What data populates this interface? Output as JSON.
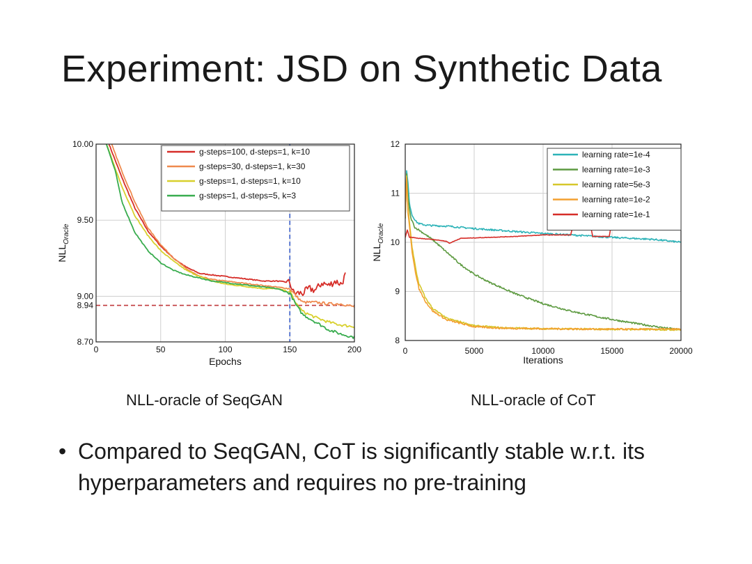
{
  "slide": {
    "title": "Experiment: JSD on Synthetic Data",
    "caption_left": "NLL-oracle of SeqGAN",
    "caption_right": "NLL-oracle of CoT",
    "bullet_symbol": "•",
    "bullet_text": "Compared to SeqGAN, CoT is significantly stable w.r.t. its hyperparameters and requires no pre-training"
  },
  "chart_data": [
    {
      "id": "seqgan",
      "type": "line",
      "xlabel": "Epochs",
      "ylabel": "NLL",
      "ylabel_sub": "Oracle",
      "xlim": [
        0,
        200
      ],
      "ylim": [
        8.7,
        10.0
      ],
      "xticks": [
        0,
        50,
        100,
        150,
        200
      ],
      "yticks": [
        {
          "value": 8.7,
          "label": "8.70"
        },
        {
          "value": 8.94,
          "label": "8.94"
        },
        {
          "value": 9.0,
          "label": "9.00"
        },
        {
          "value": 9.5,
          "label": "9.50"
        },
        {
          "value": 10.0,
          "label": "10.00"
        }
      ],
      "grid": true,
      "legend_position": "top-right",
      "reference_lines": [
        {
          "orient": "h",
          "value": 8.94,
          "color": "#c0393b",
          "style": "dashed"
        },
        {
          "orient": "v",
          "value": 150,
          "color": "#3a5ec8",
          "style": "dashed"
        }
      ],
      "series": [
        {
          "name": "g-steps=100, d-steps=1, k=10",
          "color": "#d62d28",
          "x": [
            10,
            20,
            30,
            40,
            50,
            60,
            70,
            80,
            90,
            100,
            110,
            120,
            130,
            140,
            150,
            153,
            160,
            165,
            170,
            175,
            180,
            185,
            190,
            193
          ],
          "y": [
            10.0,
            9.78,
            9.58,
            9.43,
            9.33,
            9.25,
            9.19,
            9.15,
            9.14,
            9.13,
            9.12,
            9.11,
            9.1,
            9.1,
            9.09,
            9.02,
            9.02,
            9.05,
            9.04,
            9.09,
            9.07,
            9.1,
            9.08,
            9.14
          ]
        },
        {
          "name": "g-steps=30,   d-steps=1, k=30",
          "color": "#ef8a4e",
          "x": [
            12,
            20,
            30,
            40,
            50,
            60,
            70,
            80,
            90,
            100,
            110,
            120,
            130,
            140,
            150,
            155,
            160,
            170,
            180,
            190,
            200
          ],
          "y": [
            10.0,
            9.82,
            9.62,
            9.45,
            9.34,
            9.25,
            9.18,
            9.13,
            9.11,
            9.1,
            9.09,
            9.08,
            9.07,
            9.06,
            9.05,
            9.0,
            8.96,
            8.96,
            8.95,
            8.95,
            8.93
          ]
        },
        {
          "name": "g-steps=1,     d-steps=1, k=10",
          "color": "#d8d02c",
          "x": [
            8,
            20,
            30,
            40,
            50,
            60,
            70,
            80,
            90,
            100,
            110,
            120,
            130,
            140,
            150,
            155,
            160,
            170,
            180,
            190,
            200
          ],
          "y": [
            10.0,
            9.72,
            9.53,
            9.4,
            9.3,
            9.23,
            9.17,
            9.13,
            9.1,
            9.08,
            9.07,
            9.06,
            9.05,
            9.05,
            9.03,
            8.95,
            8.9,
            8.86,
            8.83,
            8.81,
            8.8
          ]
        },
        {
          "name": "g-steps=1,     d-steps=5, k=3",
          "color": "#38ac4e",
          "x": [
            8,
            15,
            20,
            30,
            40,
            50,
            60,
            70,
            80,
            90,
            100,
            110,
            120,
            130,
            140,
            150,
            155,
            160,
            170,
            180,
            190,
            200
          ],
          "y": [
            10.0,
            9.82,
            9.62,
            9.42,
            9.3,
            9.22,
            9.17,
            9.14,
            9.12,
            9.1,
            9.09,
            9.08,
            9.07,
            9.06,
            9.05,
            9.02,
            8.94,
            8.88,
            8.83,
            8.78,
            8.75,
            8.73
          ]
        }
      ]
    },
    {
      "id": "cot",
      "type": "line",
      "xlabel": "Iterations",
      "ylabel": "NLL",
      "ylabel_sub": "Oracle",
      "xlim": [
        0,
        20000
      ],
      "ylim": [
        8,
        12
      ],
      "xticks": [
        0,
        5000,
        10000,
        15000,
        20000
      ],
      "yticks": [
        {
          "value": 8,
          "label": "8"
        },
        {
          "value": 9,
          "label": "9"
        },
        {
          "value": 10,
          "label": "10"
        },
        {
          "value": 11,
          "label": "11"
        },
        {
          "value": 12,
          "label": "12"
        }
      ],
      "grid": true,
      "legend_position": "top-right",
      "series": [
        {
          "name": "learning rate=1e-4",
          "color": "#2db3b8",
          "x": [
            0,
            100,
            200,
            300,
            500,
            800,
            1000,
            1500,
            2000,
            3000,
            5000,
            8000,
            10000,
            12000,
            15000,
            18000,
            20000
          ],
          "y": [
            10.5,
            11.45,
            11.2,
            10.8,
            10.55,
            10.42,
            10.38,
            10.35,
            10.34,
            10.33,
            10.28,
            10.22,
            10.18,
            10.15,
            10.1,
            10.06,
            10.0
          ]
        },
        {
          "name": "learning rate=1e-3",
          "color": "#5d9a40",
          "x": [
            0,
            100,
            200,
            400,
            700,
            1000,
            1500,
            2000,
            3000,
            4000,
            5000,
            6000,
            8000,
            10000,
            12000,
            14000,
            16000,
            18000,
            19000,
            20000
          ],
          "y": [
            10.5,
            11.4,
            10.9,
            10.5,
            10.3,
            10.25,
            10.15,
            10.05,
            9.8,
            9.55,
            9.35,
            9.2,
            8.95,
            8.75,
            8.6,
            8.48,
            8.38,
            8.29,
            8.25,
            8.22
          ]
        },
        {
          "name": "learning rate=5e-3",
          "color": "#d6c72a",
          "x": [
            0,
            100,
            200,
            500,
            800,
            1000,
            1500,
            2000,
            3000,
            4000,
            5000,
            7000,
            10000,
            14000,
            20000
          ],
          "y": [
            10.5,
            11.35,
            10.7,
            9.9,
            9.4,
            9.15,
            8.85,
            8.65,
            8.45,
            8.38,
            8.3,
            8.26,
            8.24,
            8.23,
            8.22
          ]
        },
        {
          "name": "learning rate=1e-2",
          "color": "#f3a030",
          "x": [
            0,
            100,
            200,
            500,
            800,
            1000,
            1500,
            2000,
            3000,
            4000,
            5000,
            7000,
            10000,
            14000,
            20000
          ],
          "y": [
            10.5,
            11.3,
            10.6,
            9.8,
            9.3,
            9.05,
            8.78,
            8.6,
            8.42,
            8.35,
            8.28,
            8.25,
            8.24,
            8.23,
            8.23
          ]
        },
        {
          "name": "learning rate=1e-1",
          "color": "#d62d28",
          "x": [
            0,
            150,
            300,
            500,
            1000,
            2000,
            3000,
            3200,
            4000,
            6000,
            8000,
            10000,
            12000,
            12100,
            13500,
            13600,
            14800,
            14900,
            17000,
            20000
          ],
          "y": [
            10.1,
            10.25,
            10.1,
            10.1,
            10.08,
            10.06,
            10.02,
            9.98,
            10.08,
            10.1,
            10.12,
            10.15,
            10.15,
            10.26,
            10.26,
            10.12,
            10.12,
            10.28,
            10.27,
            10.28
          ]
        }
      ]
    }
  ]
}
